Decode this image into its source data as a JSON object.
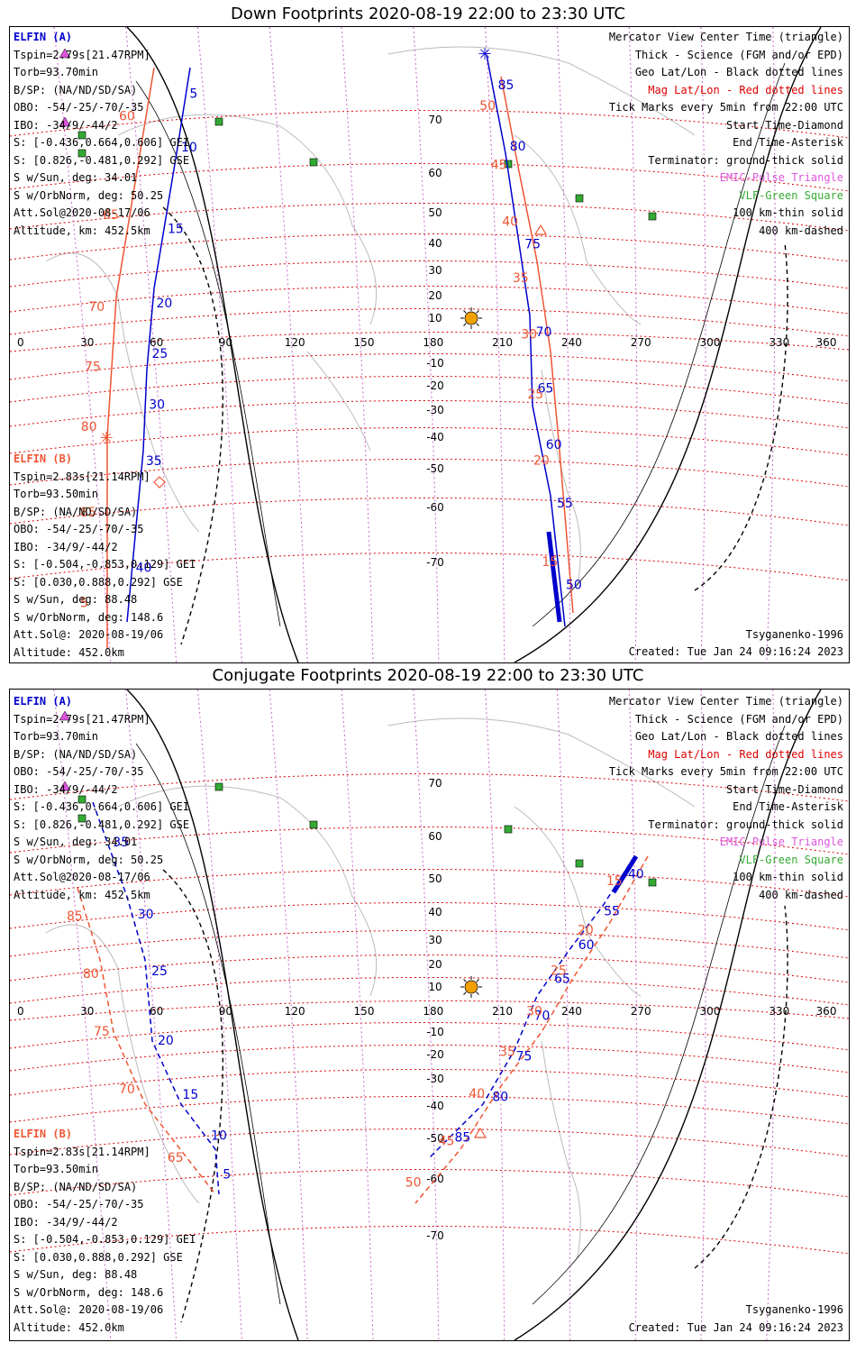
{
  "titles": {
    "down": "Down Footprints 2020-08-19 22:00 to 23:30 UTC",
    "conj": "Conjugate Footprints 2020-08-19 22:00 to 23:30 UTC"
  },
  "elfin_a": {
    "header": "ELFIN (A)",
    "lines": [
      "Tspin=2.79s[21.47RPM]",
      "Torb=93.70min",
      "B/SP: (NA/ND/SD/SA)",
      "OBO: -54/-25/-70/-35",
      "IBO: -34/9/-44/2",
      "S: [-0.436,0.664,0.606] GEI",
      "S: [0.826,-0.481,0.292] GSE",
      "S w/Sun, deg: 34.01",
      "S w/OrbNorm, deg: 50.25",
      "Att.Sol@2020-08-17/06",
      "Altitude, km: 452.5km"
    ]
  },
  "elfin_b": {
    "header": "ELFIN (B)",
    "lines": [
      "Tspin=2.83s[21.14RPM]",
      "Torb=93.50min",
      "B/SP: (NA/ND/SD/SA)",
      "OBO: -54/-25/-70/-35",
      "IBO: -34/9/-44/2",
      "S: [-0.504,-0.853,0.129] GEI",
      "S: [0.030,0.888,0.292] GSE",
      "S w/Sun, deg: 88.48",
      "S w/OrbNorm, deg: 148.6",
      "Att.Sol@: 2020-08-19/06",
      "Altitude: 452.0km"
    ]
  },
  "legend": [
    "Mercator View Center Time (triangle)",
    "Thick - Science (FGM and/or EPD)",
    "Geo Lat/Lon - Black dotted lines",
    "Mag Lat/Lon - Red dotted lines",
    "Tick Marks every 5min from 22:00 UTC",
    "Start Time-Diamond",
    "End Time-Asterisk",
    "Terminator: ground-thick solid",
    "EMIC-Pulse Triangle",
    "VLF-Green Square",
    "100 km-thin solid",
    "400 km-dashed"
  ],
  "legend_colors": [
    "#000000",
    "#000000",
    "#000000",
    "#dd0000",
    "#000000",
    "#000000",
    "#000000",
    "#000000",
    "#dd55dd",
    "#33aa33",
    "#000000",
    "#000000"
  ],
  "footer": {
    "model": "Tsyganenko-1996",
    "created": "Created: Tue Jan 24 09:16:24 2023"
  },
  "chart_data": {
    "type": "map",
    "lon_ticks": [
      "0",
      "30",
      "60",
      "90",
      "120",
      "150",
      "180",
      "210",
      "240",
      "270",
      "300",
      "330",
      "360"
    ],
    "lat_ticks": [
      "70",
      "60",
      "50",
      "40",
      "30",
      "20",
      "10",
      "-10",
      "-20",
      "-30",
      "-40",
      "-50",
      "-60",
      "-70"
    ],
    "colors": {
      "elfin_a": "#0000cc",
      "elfin_b": "#ee5533",
      "mag_grid": "#dd0000",
      "geo_grid": "#cc66cc",
      "vlf": "#33aa33"
    },
    "down": {
      "a_west_ticks": [
        "5",
        "10",
        "15",
        "20",
        "25",
        "30",
        "35",
        "40"
      ],
      "a_east_ticks": [
        "85",
        "80",
        "75",
        "70",
        "65",
        "60",
        "55",
        "50"
      ],
      "b_west_ticks": [
        "60",
        "65",
        "70",
        "75",
        "80",
        "85",
        "5"
      ],
      "b_east_ticks": [
        "50",
        "45",
        "40",
        "35",
        "30",
        "25",
        "20",
        "15"
      ]
    },
    "conj": {
      "a_west_ticks": [
        "35",
        "30",
        "25",
        "20",
        "15",
        "10",
        "5"
      ],
      "a_east_ticks": [
        "40",
        "55",
        "60",
        "65",
        "70",
        "75",
        "80",
        "85"
      ],
      "b_west_ticks": [
        "85",
        "80",
        "75",
        "70",
        "65"
      ],
      "b_east_ticks": [
        "15",
        "20",
        "25",
        "30",
        "35",
        "40",
        "45",
        "50"
      ]
    }
  }
}
